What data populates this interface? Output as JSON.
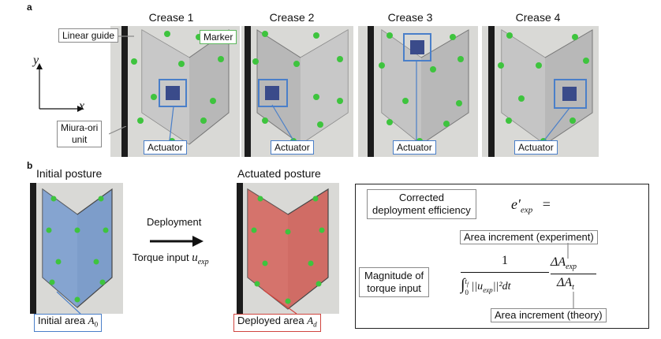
{
  "panel_a": {
    "letter": "a",
    "crease_titles": [
      "Crease 1",
      "Crease 2",
      "Crease 3",
      "Crease 4"
    ],
    "labels": {
      "linear_guide": "Linear guide",
      "marker": "Marker",
      "miura_line1": "Miura-ori",
      "miura_line2": "unit",
      "actuator": "Actuator"
    },
    "axes": {
      "x": "x",
      "y": "y"
    }
  },
  "panel_b": {
    "letter": "b",
    "initial_title": "Initial posture",
    "actuated_title": "Actuated posture",
    "deployment": "Deployment",
    "torque_input": "Torque input",
    "torque_symbol": "u",
    "torque_sub": "exp",
    "initial_area": "Initial area",
    "initial_area_symbol": "A",
    "initial_area_sub": "0",
    "deployed_area": "Deployed area",
    "deployed_area_symbol": "A",
    "deployed_area_sub": "d"
  },
  "formula": {
    "corrected_line1": "Corrected",
    "corrected_line2": "deployment efficiency",
    "lhs": "e′",
    "lhs_sub": "exp",
    "equals": "=",
    "area_exp": "Area increment (experiment)",
    "magnitude_line1": "Magnitude of",
    "magnitude_line2": "torque input",
    "one": "1",
    "integral": "∫",
    "int_upper": "t",
    "int_upper_sub": "f",
    "int_lower": "0",
    "integrand": "||u",
    "integrand_sub": "exp",
    "integrand_tail": "||²dt",
    "delta_num": "ΔA",
    "delta_num_sub": "exp",
    "delta_den": "ΔA",
    "delta_den_sub": "t",
    "area_theory": "Area increment (theory)"
  },
  "colors": {
    "marker_green": "#3ec43e",
    "actuator_blue": "#4a7fc9",
    "initial_blue": "#6d93c9",
    "deployed_red": "#cf5a52",
    "wall": "#d9d9d6",
    "rail": "#1c1c1c",
    "sheet": "#b9b9b9"
  }
}
